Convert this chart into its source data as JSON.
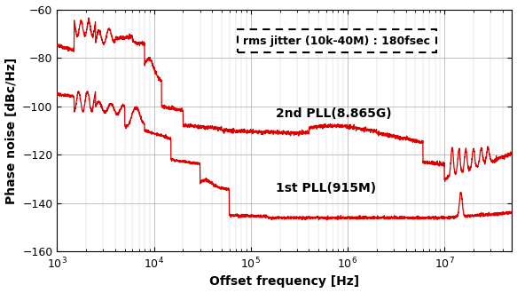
{
  "xlabel": "Offset frequency [Hz]",
  "ylabel": "Phase noise [dBc/Hz]",
  "xlim": [
    1000.0,
    50000000.0
  ],
  "ylim": [
    -160,
    -60
  ],
  "yticks": [
    -160,
    -140,
    -120,
    -100,
    -80,
    -60
  ],
  "line_color": "#DD0000",
  "annotation_box": "rms jitter (10k-40M) : 180fsec",
  "label_2nd": "2nd PLL(8.865G)",
  "label_1st": "1st PLL(915M)",
  "background_color": "#ffffff"
}
